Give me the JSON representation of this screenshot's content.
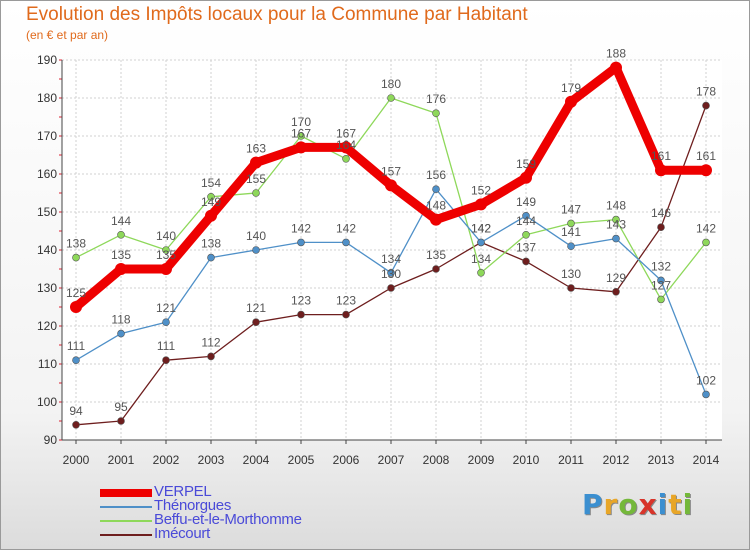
{
  "header": {
    "title": "Evolution des Impôts locaux pour la Commune par Habitant",
    "subtitle": "(en € et par an)"
  },
  "logo": {
    "text": "Proxiti"
  },
  "chart_data": {
    "type": "line",
    "title": "Evolution des Impôts locaux pour la Commune par Habitant",
    "subtitle": "(en € et par an)",
    "xlabel": "",
    "ylabel": "",
    "categories": [
      "2000",
      "2001",
      "2002",
      "2003",
      "2004",
      "2005",
      "2006",
      "2007",
      "2008",
      "2009",
      "2010",
      "2011",
      "2012",
      "2013",
      "2014"
    ],
    "ylim": [
      90,
      190
    ],
    "yticks": [
      90,
      100,
      110,
      120,
      130,
      140,
      150,
      160,
      170,
      180,
      190
    ],
    "grid": true,
    "legend_position": "bottom-left",
    "series": [
      {
        "name": "VERPEL",
        "color": "#ee0000",
        "values": [
          125,
          135,
          135,
          149,
          163,
          167,
          167,
          157,
          148,
          152,
          159,
          179,
          188,
          161,
          161
        ]
      },
      {
        "name": "Thénorgues",
        "color": "#4f90c8",
        "values": [
          111,
          118,
          121,
          138,
          140,
          142,
          142,
          134,
          156,
          142,
          149,
          141,
          143,
          132,
          102
        ]
      },
      {
        "name": "Beffu-et-le-Morthomme",
        "color": "#8ed85a",
        "values": [
          138,
          144,
          140,
          154,
          155,
          170,
          164,
          180,
          176,
          134,
          144,
          147,
          148,
          127,
          142
        ]
      },
      {
        "name": "Imécourt",
        "color": "#6e1e1e",
        "values": [
          94,
          95,
          111,
          112,
          121,
          123,
          123,
          130,
          135,
          142,
          137,
          130,
          129,
          146,
          178
        ]
      }
    ]
  }
}
